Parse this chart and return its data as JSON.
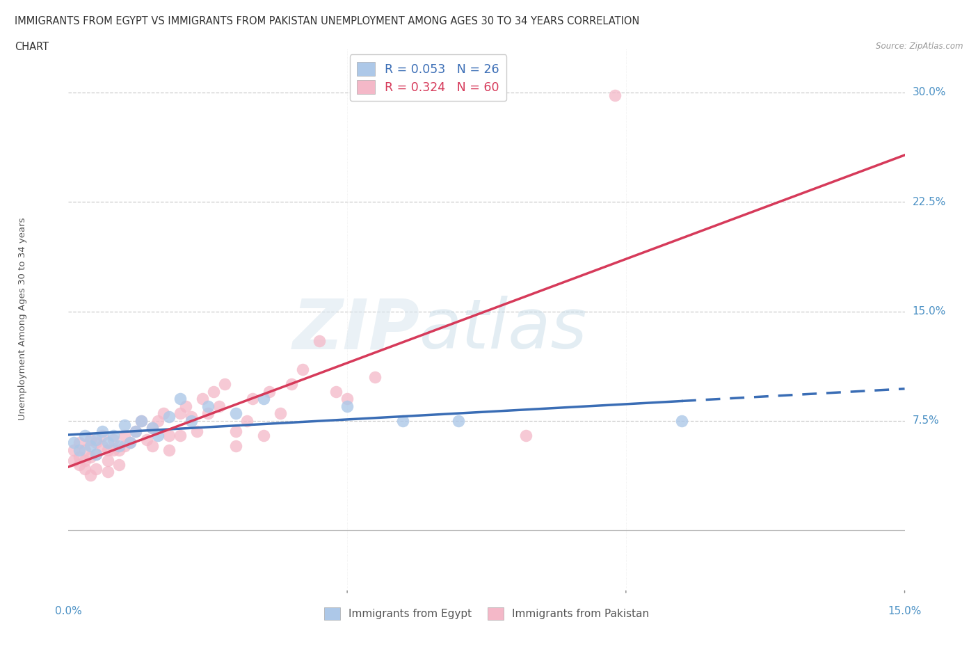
{
  "title_line1": "IMMIGRANTS FROM EGYPT VS IMMIGRANTS FROM PAKISTAN UNEMPLOYMENT AMONG AGES 30 TO 34 YEARS CORRELATION",
  "title_line2": "CHART",
  "source": "Source: ZipAtlas.com",
  "ylabel": "Unemployment Among Ages 30 to 34 years",
  "legend_egypt": "R = 0.053   N = 26",
  "legend_pakistan": "R = 0.324   N = 60",
  "color_egypt": "#adc8e8",
  "color_pakistan": "#f4b8c8",
  "color_line_egypt": "#3a6db5",
  "color_line_pakistan": "#d63a5a",
  "color_axis_labels": "#4a90c4",
  "ytick_labels": [
    "7.5%",
    "15.0%",
    "22.5%",
    "30.0%"
  ],
  "ytick_values": [
    0.075,
    0.15,
    0.225,
    0.3
  ],
  "xlim": [
    0.0,
    0.15
  ],
  "ylim": [
    -0.04,
    0.33
  ],
  "grid_color": "#cccccc",
  "background_color": "#ffffff",
  "title_color": "#333333",
  "source_color": "#999999",
  "egypt_x": [
    0.001,
    0.002,
    0.003,
    0.004,
    0.005,
    0.005,
    0.006,
    0.007,
    0.008,
    0.009,
    0.01,
    0.011,
    0.012,
    0.013,
    0.015,
    0.016,
    0.018,
    0.02,
    0.022,
    0.025,
    0.03,
    0.035,
    0.05,
    0.06,
    0.07,
    0.11
  ],
  "egypt_y": [
    0.06,
    0.055,
    0.065,
    0.058,
    0.062,
    0.052,
    0.068,
    0.06,
    0.065,
    0.058,
    0.072,
    0.06,
    0.068,
    0.075,
    0.07,
    0.065,
    0.078,
    0.09,
    0.075,
    0.085,
    0.08,
    0.09,
    0.085,
    0.075,
    0.075,
    0.075
  ],
  "pakistan_x": [
    0.001,
    0.001,
    0.002,
    0.002,
    0.002,
    0.003,
    0.003,
    0.003,
    0.004,
    0.004,
    0.004,
    0.005,
    0.005,
    0.005,
    0.006,
    0.006,
    0.007,
    0.007,
    0.007,
    0.008,
    0.008,
    0.009,
    0.009,
    0.01,
    0.01,
    0.011,
    0.012,
    0.013,
    0.014,
    0.015,
    0.015,
    0.016,
    0.017,
    0.018,
    0.018,
    0.02,
    0.02,
    0.021,
    0.022,
    0.023,
    0.024,
    0.025,
    0.026,
    0.027,
    0.028,
    0.03,
    0.03,
    0.032,
    0.033,
    0.035,
    0.036,
    0.038,
    0.04,
    0.042,
    0.045,
    0.048,
    0.05,
    0.055,
    0.082,
    0.098
  ],
  "pakistan_y": [
    0.055,
    0.048,
    0.06,
    0.05,
    0.045,
    0.055,
    0.048,
    0.042,
    0.062,
    0.05,
    0.038,
    0.06,
    0.052,
    0.042,
    0.065,
    0.058,
    0.055,
    0.048,
    0.04,
    0.062,
    0.055,
    0.055,
    0.045,
    0.065,
    0.058,
    0.06,
    0.068,
    0.075,
    0.062,
    0.07,
    0.058,
    0.075,
    0.08,
    0.065,
    0.055,
    0.08,
    0.065,
    0.085,
    0.078,
    0.068,
    0.09,
    0.08,
    0.095,
    0.085,
    0.1,
    0.068,
    0.058,
    0.075,
    0.09,
    0.065,
    0.095,
    0.08,
    0.1,
    0.11,
    0.13,
    0.095,
    0.09,
    0.105,
    0.065,
    0.298
  ],
  "line_egypt_x0": 0.0,
  "line_egypt_x_solid_end": 0.075,
  "line_egypt_x_dash_end": 0.15,
  "line_pakistan_x0": 0.0,
  "line_pakistan_x1": 0.15
}
